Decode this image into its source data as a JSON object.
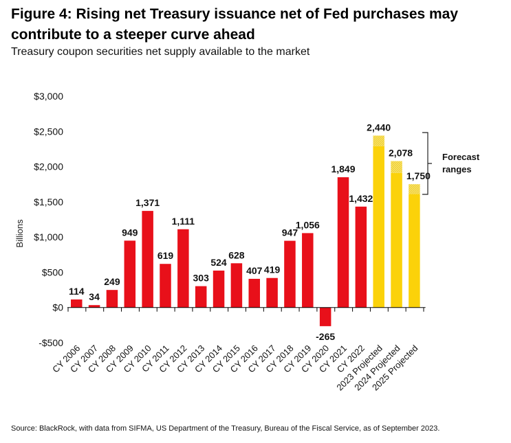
{
  "figure": {
    "title": "Figure 4: Rising net Treasury issuance net of Fed purchases may contribute to a steeper curve ahead",
    "subtitle": "Treasury coupon securities net supply available to the market",
    "source": "Source: BlackRock, with data from SIFMA, US Department of the Treasury, Bureau of the Fiscal Service, as of September 2023."
  },
  "chart_data": {
    "type": "bar",
    "ylabel": "Billions",
    "ylim": [
      -500,
      3000
    ],
    "yticks": [
      3000,
      2500,
      2000,
      1500,
      1000,
      500,
      0,
      -500
    ],
    "ytick_labels": [
      "$3,000",
      "$2,500",
      "$2,000",
      "$1,500",
      "$1,000",
      "$500",
      "$0",
      "-$500"
    ],
    "categories": [
      "CY 2006",
      "CY 2007",
      "CY 2008",
      "CY 2009",
      "CY 2010",
      "CY 2011",
      "CY 2012",
      "CY 2013",
      "CY 2014",
      "CY 2015",
      "CY 2016",
      "CY 2017",
      "CY 2018",
      "CY 2019",
      "CY 2020",
      "CY 2021",
      "CY 2022",
      "2023 Projected",
      "2024 Projected",
      "2025 Projected"
    ],
    "values": [
      114,
      34,
      249,
      949,
      1371,
      619,
      1111,
      303,
      524,
      628,
      407,
      419,
      947,
      1056,
      -265,
      1849,
      1432,
      2440,
      2078,
      1750
    ],
    "value_labels": [
      "114",
      "34",
      "249",
      "949",
      "1,371",
      "619",
      "1,111",
      "303",
      "524",
      "628",
      "407",
      "419",
      "947",
      "1,056",
      "-265",
      "1,849",
      "1,432",
      "2,440",
      "2,078",
      "1,750"
    ],
    "projected": [
      false,
      false,
      false,
      false,
      false,
      false,
      false,
      false,
      false,
      false,
      false,
      false,
      false,
      false,
      false,
      false,
      false,
      true,
      true,
      true
    ],
    "forecast_range_low": [
      null,
      null,
      null,
      null,
      null,
      null,
      null,
      null,
      null,
      null,
      null,
      null,
      null,
      null,
      null,
      null,
      null,
      2290,
      1910,
      1610
    ],
    "annotation": "Forecast\nranges",
    "colors": {
      "actual": "#e8101a",
      "projected": "#fbd20a",
      "range": "#f7e16b",
      "axis": "#000000"
    },
    "grid": false
  }
}
